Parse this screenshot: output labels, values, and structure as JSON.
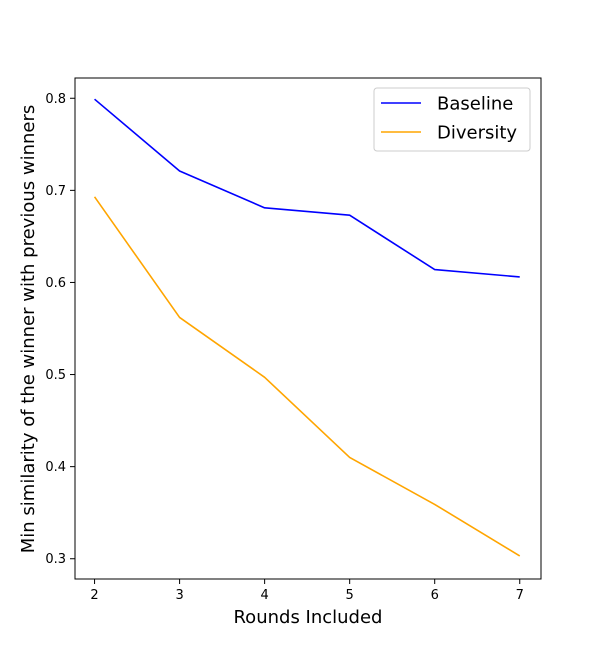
{
  "chart_data": {
    "type": "line",
    "xlabel": "Rounds Included",
    "ylabel": "Min similarity of the winner with previous winners",
    "x": [
      2,
      3,
      4,
      5,
      6,
      7
    ],
    "xticks": [
      "2",
      "3",
      "4",
      "5",
      "6",
      "7"
    ],
    "yticks": [
      "0.3",
      "0.4",
      "0.5",
      "0.6",
      "0.7",
      "0.8"
    ],
    "xlim": [
      1.77,
      7.25
    ],
    "ylim": [
      0.278,
      0.822
    ],
    "grid": false,
    "legend_position": "top-right",
    "series": [
      {
        "name": "Baseline",
        "color": "#0000ff",
        "values": [
          0.799,
          0.721,
          0.681,
          0.673,
          0.614,
          0.606
        ]
      },
      {
        "name": "Diversity",
        "color": "#ffa500",
        "values": [
          0.693,
          0.562,
          0.497,
          0.41,
          0.359,
          0.303
        ]
      }
    ]
  }
}
